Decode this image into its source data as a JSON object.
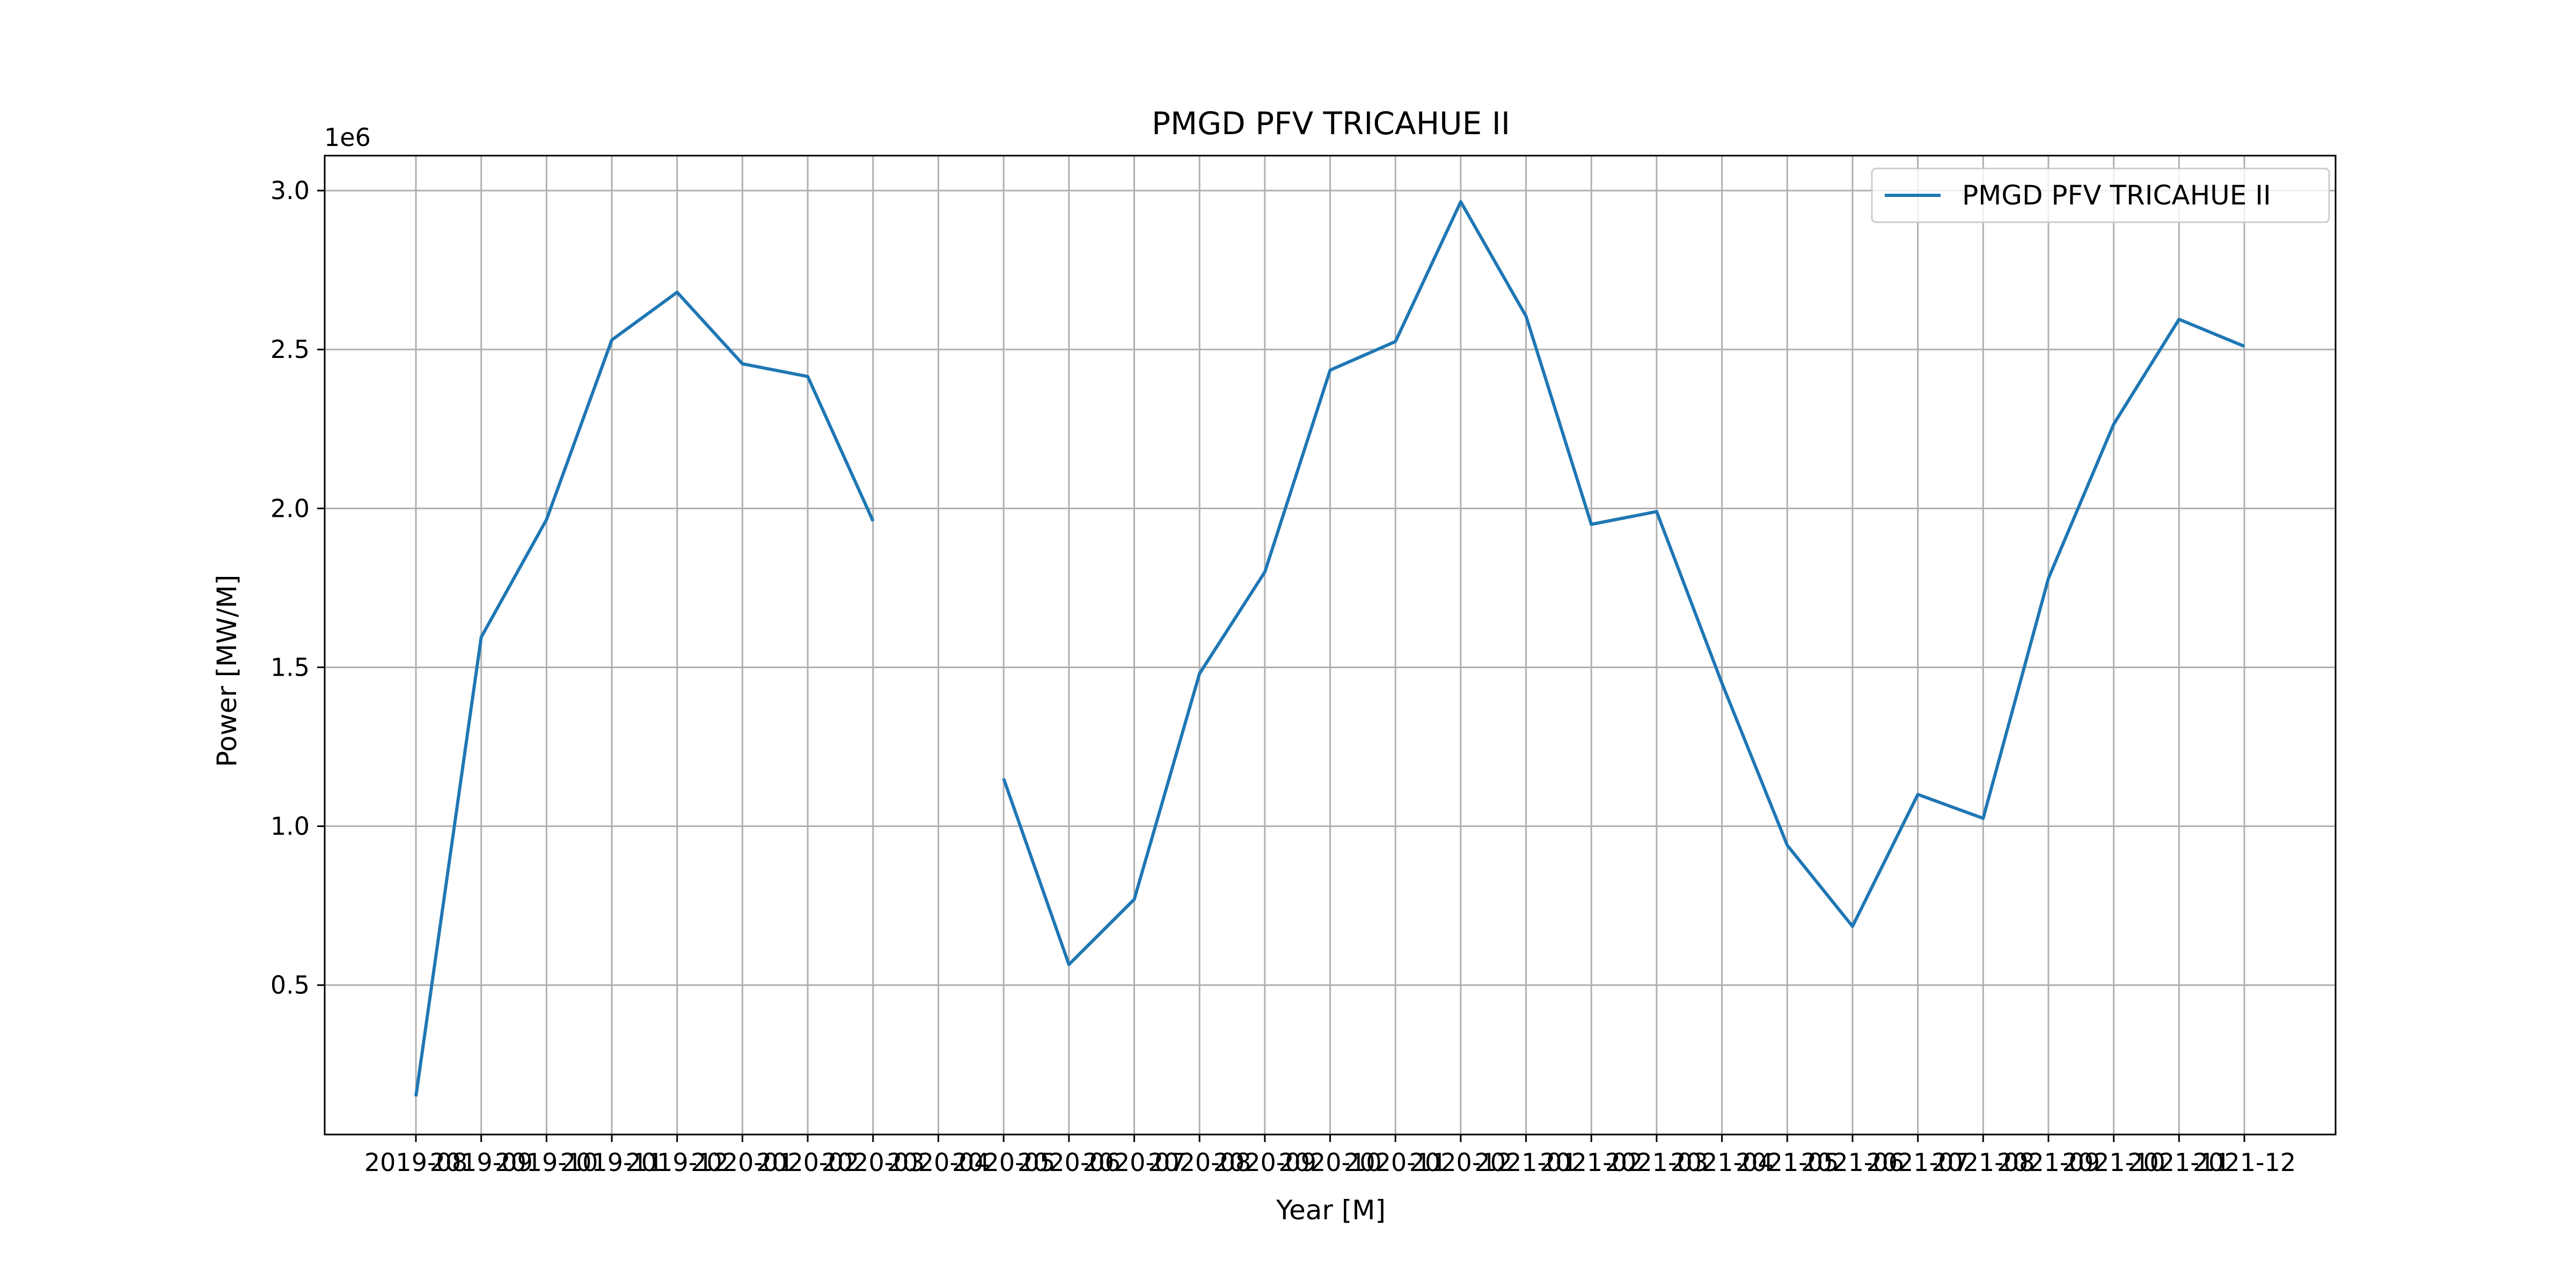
{
  "chart_data": {
    "type": "line",
    "title": "PMGD PFV TRICAHUE II",
    "xlabel": "Year [M]",
    "ylabel": "Power [MW/M]",
    "y_multiplier_label": "1e6",
    "y_scale": 1000000,
    "ylim": [
      30000,
      3110000
    ],
    "yticks": [
      0.5,
      1.0,
      1.5,
      2.0,
      2.5,
      3.0
    ],
    "ytick_labels": [
      "0.5",
      "1.0",
      "1.5",
      "2.0",
      "2.5",
      "3.0"
    ],
    "grid": true,
    "legend_position": "top-right",
    "x": [
      "2019-08",
      "2019-09",
      "2019-10",
      "2019-11",
      "2019-12",
      "2020-01",
      "2020-02",
      "2020-03",
      "2020-04",
      "2020-05",
      "2020-06",
      "2020-07",
      "2020-08",
      "2020-09",
      "2020-10",
      "2020-11",
      "2020-12",
      "2021-01",
      "2021-02",
      "2021-03",
      "2021-04",
      "2021-05",
      "2021-06",
      "2021-07",
      "2021-08",
      "2021-09",
      "2021-10",
      "2021-11",
      "2021-12"
    ],
    "series": [
      {
        "name": "PMGD PFV TRICAHUE II",
        "color": "#1f77b4",
        "values": [
          150000,
          1595000,
          1965000,
          2530000,
          2680000,
          2455000,
          2415000,
          1960000,
          null,
          1150000,
          565000,
          770000,
          1480000,
          1800000,
          2435000,
          2525000,
          2965000,
          2605000,
          1950000,
          1990000,
          1450000,
          940000,
          685000,
          1100000,
          1025000,
          1780000,
          2265000,
          2595000,
          2510000
        ]
      }
    ]
  }
}
